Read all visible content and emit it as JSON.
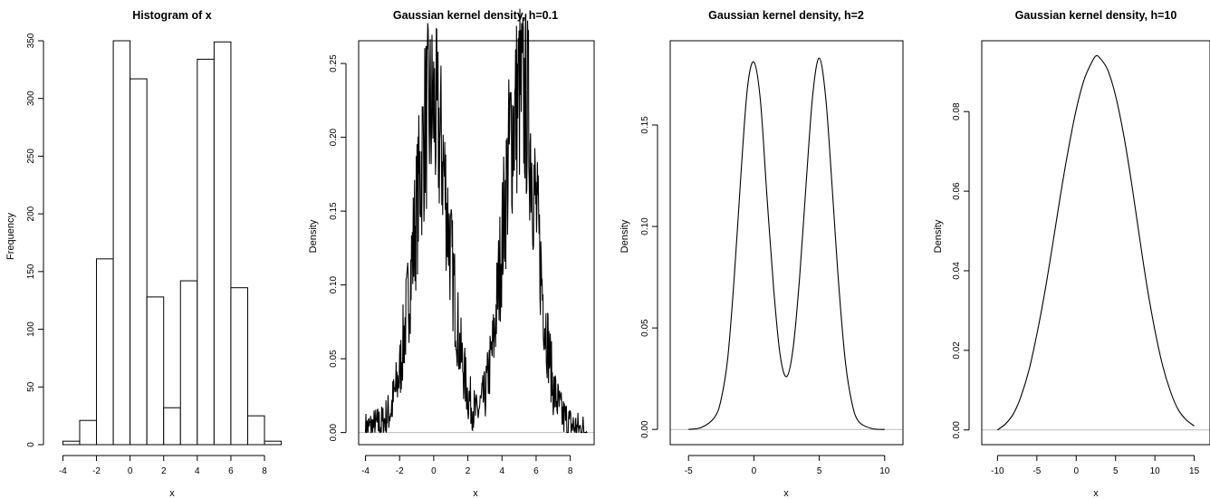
{
  "chart_data": [
    {
      "type": "bar",
      "title": "Histogram of x",
      "xlabel": "x",
      "ylabel": "Frequency",
      "xlim": [
        -4.4,
        9.4
      ],
      "ylim": [
        0,
        350
      ],
      "bin_width": 1,
      "bins": [
        {
          "x0": -4,
          "x1": -3,
          "count": 3
        },
        {
          "x0": -3,
          "x1": -2,
          "count": 21
        },
        {
          "x0": -2,
          "x1": -1,
          "count": 161
        },
        {
          "x0": -1,
          "x1": 0,
          "count": 350
        },
        {
          "x0": 0,
          "x1": 1,
          "count": 317
        },
        {
          "x0": 1,
          "x1": 2,
          "count": 128
        },
        {
          "x0": 2,
          "x1": 3,
          "count": 32
        },
        {
          "x0": 3,
          "x1": 4,
          "count": 142
        },
        {
          "x0": 4,
          "x1": 5,
          "count": 334
        },
        {
          "x0": 5,
          "x1": 6,
          "count": 349
        },
        {
          "x0": 6,
          "x1": 7,
          "count": 136
        },
        {
          "x0": 7,
          "x1": 8,
          "count": 25
        },
        {
          "x0": 8,
          "x1": 9,
          "count": 3
        }
      ],
      "xticks": [
        -4,
        -2,
        0,
        2,
        4,
        6,
        8
      ],
      "xtick_labels": [
        "-4",
        "-2",
        "0",
        "2",
        "4",
        "6",
        "8"
      ],
      "yticks": [
        0,
        50,
        100,
        150,
        200,
        250,
        300,
        350
      ],
      "ytick_labels": [
        "0",
        "50",
        "100",
        "150",
        "200",
        "250",
        "300",
        "350"
      ],
      "box": false
    },
    {
      "type": "line",
      "title": "Gaussian kernel density, h=0.1",
      "xlabel": "x",
      "ylabel": "Density",
      "xlim": [
        -4.4,
        9.4
      ],
      "ylim": [
        -0.0082,
        0.2654
      ],
      "noisy": true,
      "x": [
        -4.0,
        -3.5,
        -3.0,
        -2.5,
        -2.0,
        -1.5,
        -1.0,
        -0.5,
        0.0,
        0.5,
        1.0,
        1.5,
        2.0,
        2.5,
        3.0,
        3.5,
        4.0,
        4.5,
        5.0,
        5.5,
        6.0,
        6.5,
        7.0,
        7.5,
        8.0,
        8.5,
        9.0
      ],
      "y": [
        0.002,
        0.004,
        0.006,
        0.016,
        0.04,
        0.09,
        0.15,
        0.21,
        0.22,
        0.19,
        0.12,
        0.06,
        0.025,
        0.012,
        0.025,
        0.06,
        0.13,
        0.2,
        0.23,
        0.22,
        0.15,
        0.08,
        0.03,
        0.012,
        0.005,
        0.002,
        0.001
      ],
      "xticks": [
        -4,
        -2,
        0,
        2,
        4,
        6,
        8
      ],
      "xtick_labels": [
        "-4",
        "-2",
        "0",
        "2",
        "4",
        "6",
        "8"
      ],
      "yticks": [
        0,
        0.05,
        0.1,
        0.15,
        0.2,
        0.25
      ],
      "ytick_labels": [
        "0.00",
        "0.05",
        "0.10",
        "0.15",
        "0.20",
        "0.25"
      ],
      "box": true
    },
    {
      "type": "line",
      "title": "Gaussian kernel density, h=2",
      "xlabel": "x",
      "ylabel": "Density",
      "xlim": [
        -6.4,
        11.4
      ],
      "ylim": [
        -0.0075,
        0.1915
      ],
      "x": [
        -5.0,
        -4.0,
        -3.0,
        -2.5,
        -2.0,
        -1.5,
        -1.0,
        -0.5,
        0.0,
        0.5,
        1.0,
        1.5,
        2.0,
        2.5,
        3.0,
        3.5,
        4.0,
        4.5,
        5.0,
        5.5,
        6.0,
        6.5,
        7.0,
        7.5,
        8.0,
        9.0,
        10.0
      ],
      "y": [
        0.0,
        0.001,
        0.006,
        0.015,
        0.035,
        0.075,
        0.125,
        0.168,
        0.181,
        0.162,
        0.115,
        0.07,
        0.037,
        0.026,
        0.04,
        0.075,
        0.122,
        0.165,
        0.183,
        0.163,
        0.118,
        0.07,
        0.033,
        0.013,
        0.004,
        0.0005,
        0.0
      ],
      "xticks": [
        -5,
        0,
        5,
        10
      ],
      "xtick_labels": [
        "-5",
        "0",
        "5",
        "10"
      ],
      "yticks": [
        0,
        0.05,
        0.1,
        0.15
      ],
      "ytick_labels": [
        "0.00",
        "0.05",
        "0.10",
        "0.15"
      ],
      "box": true
    },
    {
      "type": "line",
      "title": "Gaussian kernel density, h=10",
      "xlabel": "x",
      "ylabel": "Density",
      "xlim": [
        -12.0,
        17.0
      ],
      "ylim": [
        -0.0037,
        0.0978
      ],
      "x": [
        -10.0,
        -9.0,
        -8.0,
        -7.0,
        -6.0,
        -5.0,
        -4.0,
        -3.0,
        -2.0,
        -1.0,
        0.0,
        1.0,
        2.0,
        2.5,
        3.0,
        4.0,
        5.0,
        6.0,
        7.0,
        8.0,
        9.0,
        10.0,
        11.0,
        12.0,
        13.0,
        14.0,
        15.0
      ],
      "y": [
        0.0,
        0.0015,
        0.004,
        0.0085,
        0.015,
        0.024,
        0.0345,
        0.0465,
        0.059,
        0.0705,
        0.0805,
        0.088,
        0.0925,
        0.094,
        0.0935,
        0.0905,
        0.084,
        0.0745,
        0.0625,
        0.049,
        0.036,
        0.025,
        0.016,
        0.0095,
        0.005,
        0.0025,
        0.001
      ],
      "xticks": [
        -10,
        -5,
        0,
        5,
        10,
        15
      ],
      "xtick_labels": [
        "-10",
        "-5",
        "0",
        "5",
        "10",
        "15"
      ],
      "yticks": [
        0,
        0.02,
        0.04,
        0.06,
        0.08
      ],
      "ytick_labels": [
        "0.00",
        "0.02",
        "0.04",
        "0.06",
        "0.08"
      ],
      "box": true
    }
  ]
}
